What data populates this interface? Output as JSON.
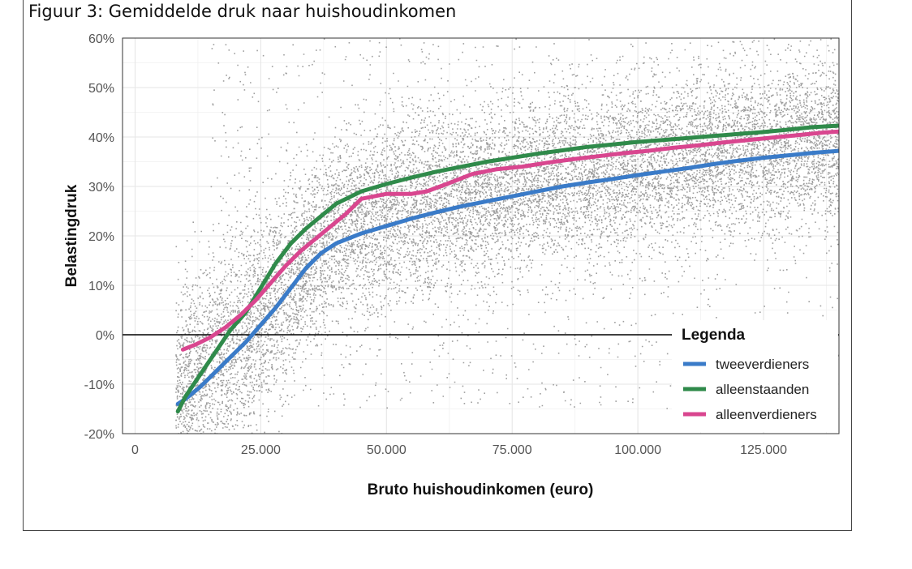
{
  "figure_title": "Figuur 3: Gemiddelde druk naar huishoudinkomen",
  "chart_data": {
    "type": "line",
    "title": "",
    "xlabel": "Bruto huishoudinkomen (euro)",
    "ylabel": "Belastingdruk",
    "xlim": [
      -2500,
      140000
    ],
    "ylim": [
      -20,
      60
    ],
    "x_ticks": [
      0,
      25000,
      50000,
      75000,
      100000,
      125000
    ],
    "x_tick_labels": [
      "0",
      "25.000",
      "50.000",
      "75.000",
      "100.000",
      "125.000"
    ],
    "y_ticks": [
      -20,
      -10,
      0,
      10,
      20,
      30,
      40,
      50,
      60
    ],
    "y_tick_labels": [
      "-20%",
      "-10%",
      "0%",
      "10%",
      "20%",
      "30%",
      "40%",
      "50%",
      "60%"
    ],
    "grid": true,
    "reference_line_y": 0,
    "background_scatter": {
      "description_type": "individual households",
      "color": "#9e9e9e"
    },
    "legend": {
      "title": "Legenda",
      "position": "bottom-right"
    },
    "series": [
      {
        "name": "tweeverdieners",
        "color": "#3a7bc8",
        "x": [
          8500,
          10000,
          13000,
          16000,
          19000,
          22000,
          25000,
          28000,
          31000,
          34000,
          37000,
          40000,
          45000,
          50000,
          55000,
          60000,
          65000,
          70000,
          75000,
          80000,
          85000,
          90000,
          95000,
          100000,
          105000,
          110000,
          115000,
          120000,
          125000,
          130000,
          135000,
          140000
        ],
        "y": [
          -14,
          -13,
          -10.5,
          -7.5,
          -4.5,
          -1.5,
          2,
          5.5,
          9.5,
          13.5,
          16.5,
          18.5,
          20.5,
          22,
          23.5,
          24.8,
          26,
          27,
          28,
          29,
          30,
          30.8,
          31.5,
          32.3,
          33,
          33.7,
          34.5,
          35.2,
          35.8,
          36.3,
          36.8,
          37.2
        ]
      },
      {
        "name": "alleenstaanden",
        "color": "#2f8a4a",
        "x": [
          8500,
          10000,
          13000,
          16000,
          19000,
          22000,
          25000,
          28000,
          31000,
          34000,
          37000,
          40000,
          45000,
          50000,
          55000,
          60000,
          65000,
          70000,
          75000,
          80000,
          85000,
          90000,
          95000,
          100000,
          105000,
          110000,
          115000,
          120000,
          125000,
          130000,
          135000,
          140000
        ],
        "y": [
          -15.5,
          -12.5,
          -8,
          -3.5,
          1,
          4.5,
          9.5,
          14.5,
          18.5,
          21.5,
          24,
          26.5,
          29,
          30.5,
          31.8,
          33,
          34,
          35,
          35.8,
          36.6,
          37.3,
          38,
          38.5,
          39,
          39.4,
          39.8,
          40.2,
          40.6,
          41,
          41.5,
          42,
          42.3
        ]
      },
      {
        "name": "alleenverdieners",
        "color": "#d9468f",
        "x": [
          9500,
          12000,
          15000,
          18000,
          21000,
          24000,
          27000,
          30000,
          33000,
          36000,
          39000,
          42000,
          45000,
          50000,
          55000,
          58000,
          62000,
          67000,
          72000,
          77000,
          82000,
          87000,
          92000,
          97000,
          102000,
          107000,
          112000,
          117000,
          122000,
          127000,
          132000,
          137000,
          140000
        ],
        "y": [
          -3,
          -2,
          -0.5,
          1.5,
          4,
          7,
          10.5,
          14,
          17,
          19.5,
          22,
          24.5,
          27.5,
          28.5,
          28.5,
          29,
          30.5,
          32.5,
          33.5,
          34,
          34.8,
          35.5,
          36.1,
          36.7,
          37.2,
          37.8,
          38.3,
          38.9,
          39.4,
          39.9,
          40.4,
          40.9,
          41.1
        ]
      }
    ]
  }
}
